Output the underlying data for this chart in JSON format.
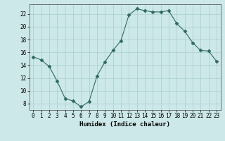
{
  "x": [
    0,
    1,
    2,
    3,
    4,
    5,
    6,
    7,
    8,
    9,
    10,
    11,
    12,
    13,
    14,
    15,
    16,
    17,
    18,
    19,
    20,
    21,
    22,
    23
  ],
  "y": [
    15.3,
    14.8,
    13.8,
    11.5,
    8.8,
    8.4,
    7.5,
    8.3,
    12.3,
    14.5,
    16.3,
    17.8,
    21.8,
    22.8,
    22.5,
    22.3,
    22.3,
    22.5,
    20.5,
    19.3,
    17.5,
    16.3,
    16.2,
    14.6
  ],
  "xlabel": "Humidex (Indice chaleur)",
  "ylim": [
    7,
    23.5
  ],
  "yticks": [
    8,
    10,
    12,
    14,
    16,
    18,
    20,
    22
  ],
  "xticks": [
    0,
    1,
    2,
    3,
    4,
    5,
    6,
    7,
    8,
    9,
    10,
    11,
    12,
    13,
    14,
    15,
    16,
    17,
    18,
    19,
    20,
    21,
    22,
    23
  ],
  "line_color": "#2e6b5e",
  "marker": "D",
  "marker_size": 2.5,
  "bg_color": "#cce8e8",
  "grid_color": "#aacece",
  "fig_bg": "#cce8e8"
}
